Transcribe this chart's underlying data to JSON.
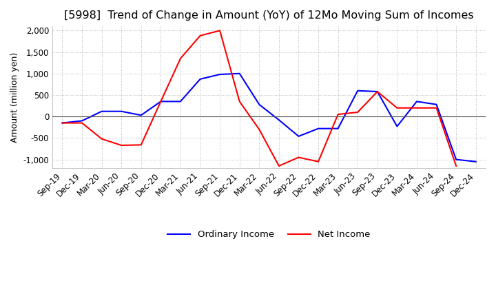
{
  "title": "[5998]  Trend of Change in Amount (YoY) of 12Mo Moving Sum of Incomes",
  "ylabel": "Amount (million yen)",
  "ylim": [
    -1200,
    2100
  ],
  "yticks": [
    -1000,
    -500,
    0,
    500,
    1000,
    1500,
    2000
  ],
  "x_labels": [
    "Sep-19",
    "Dec-19",
    "Mar-20",
    "Jun-20",
    "Sep-20",
    "Dec-20",
    "Mar-21",
    "Jun-21",
    "Sep-21",
    "Dec-21",
    "Mar-22",
    "Jun-22",
    "Sep-22",
    "Dec-22",
    "Mar-23",
    "Jun-23",
    "Sep-23",
    "Dec-23",
    "Mar-24",
    "Jun-24",
    "Sep-24",
    "Dec-24"
  ],
  "ordinary_income": [
    -150,
    -100,
    120,
    120,
    30,
    350,
    350,
    870,
    980,
    1000,
    280,
    -80,
    -460,
    -280,
    -280,
    600,
    580,
    -230,
    350,
    280,
    -1000,
    -1050
  ],
  "net_income": [
    -150,
    -150,
    -520,
    -670,
    -660,
    350,
    1350,
    1880,
    2000,
    350,
    -300,
    -1150,
    -950,
    -1050,
    50,
    100,
    580,
    200,
    200,
    200,
    -1150,
    null
  ],
  "ordinary_color": "#0000ff",
  "net_color": "#ff0000",
  "grid_color": "#aaaaaa",
  "background_color": "#ffffff",
  "title_fontsize": 11.5,
  "label_fontsize": 9,
  "tick_fontsize": 8.5,
  "legend_fontsize": 9.5
}
